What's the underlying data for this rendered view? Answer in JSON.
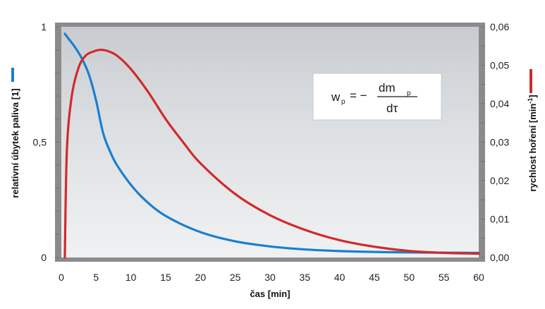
{
  "chart_data": {
    "type": "line",
    "xlabel": "čas [min]",
    "ylabel_left": "relativní úbytek paliva [1]",
    "ylabel_right_main": "rychlost hoření  [min",
    "ylabel_right_sup": "-1",
    "ylabel_right_close": "]",
    "xlim": [
      0,
      60
    ],
    "ylim_left": [
      0,
      1
    ],
    "ylim_right": [
      0,
      0.06
    ],
    "x_ticks": [
      0,
      5,
      10,
      15,
      20,
      25,
      30,
      35,
      40,
      45,
      50,
      55,
      60
    ],
    "left_ticks": [
      {
        "value": 0,
        "label": "0"
      },
      {
        "value": 0.5,
        "label": "0,5"
      },
      {
        "value": 1,
        "label": "1"
      }
    ],
    "right_ticks": [
      {
        "value": 0.0,
        "label": "0,00"
      },
      {
        "value": 0.01,
        "label": "0,01"
      },
      {
        "value": 0.02,
        "label": "0,02"
      },
      {
        "value": 0.03,
        "label": "0,03"
      },
      {
        "value": 0.04,
        "label": "0,04"
      },
      {
        "value": 0.05,
        "label": "0,05"
      },
      {
        "value": 0.06,
        "label": "0,06"
      }
    ],
    "series": [
      {
        "axis": "left",
        "color": "#1a7fd0",
        "x": [
          0.5,
          1,
          2,
          3,
          4,
          5,
          6,
          7,
          8,
          10,
          12,
          15,
          20,
          25,
          30,
          35,
          40,
          45,
          50,
          55,
          60
        ],
        "y": [
          0.97,
          0.95,
          0.91,
          0.86,
          0.79,
          0.68,
          0.54,
          0.46,
          0.4,
          0.315,
          0.25,
          0.18,
          0.11,
          0.07,
          0.048,
          0.035,
          0.028,
          0.024,
          0.022,
          0.021,
          0.02
        ]
      },
      {
        "axis": "right",
        "color": "#d22a2a",
        "x": [
          0.5,
          0.8,
          1.5,
          2.5,
          3.5,
          4.5,
          5.5,
          6.5,
          8,
          10,
          12.5,
          15,
          17.5,
          20,
          25,
          30,
          35,
          40,
          45,
          50,
          55,
          60
        ],
        "y": [
          0.0,
          0.028,
          0.042,
          0.0495,
          0.0525,
          0.0535,
          0.054,
          0.0538,
          0.0525,
          0.049,
          0.043,
          0.036,
          0.03,
          0.0245,
          0.0165,
          0.011,
          0.0072,
          0.0045,
          0.0028,
          0.0017,
          0.0012,
          0.001
        ]
      }
    ]
  },
  "formula": {
    "lhs": "w",
    "lhs_sub": "p",
    "eq": "= −",
    "num": "dm",
    "num_sub": "p",
    "den": "dτ"
  },
  "legend": {
    "left_color": "#1a7fd0",
    "right_color": "#d22a2a"
  }
}
